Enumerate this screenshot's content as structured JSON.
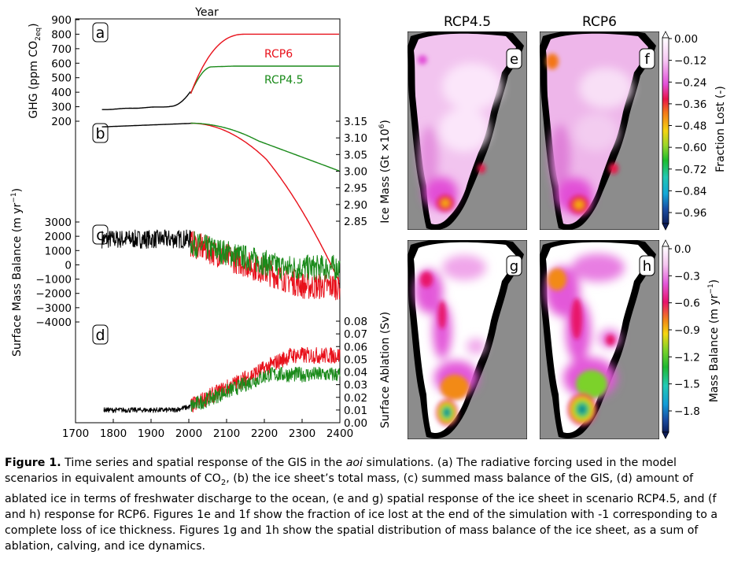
{
  "figure": {
    "left": {
      "top_axis_label": "Year",
      "x_ticks": [
        "1700",
        "1800",
        "1900",
        "2000",
        "2100",
        "2200",
        "2300",
        "2400"
      ],
      "panel_a": {
        "letter": "a",
        "ylabel": "GHG (ppm CO",
        "ylabel_sub": "2eq",
        "ylabel_end": ")",
        "y_ticks": [
          "900",
          "800",
          "700",
          "600",
          "500",
          "400",
          "300",
          "200"
        ],
        "series_labels": [
          "RCP6",
          "RCP4.5"
        ]
      },
      "panel_b": {
        "letter": "b",
        "ylabel": "Ice Mass (Gt  ×10",
        "ylabel_sup": "6",
        "ylabel_end": ")",
        "y_ticks": [
          "3.15",
          "3.10",
          "3.05",
          "3.00",
          "2.95",
          "2.90",
          "2.85"
        ]
      },
      "panel_c": {
        "letter": "c",
        "ylabel": "Surface Mass Balance (m yr",
        "ylabel_sup": "−1",
        "ylabel_end": ")",
        "y_ticks": [
          "3000",
          "2000",
          "1000",
          "0",
          "−1000",
          "−2000",
          "−3000",
          "−4000"
        ]
      },
      "panel_d": {
        "letter": "d",
        "ylabel": "Surface Ablation (Sv)",
        "y_ticks": [
          "0.08",
          "0.07",
          "0.06",
          "0.05",
          "0.04",
          "0.03",
          "0.02",
          "0.01",
          "0.00"
        ]
      }
    },
    "maps": {
      "col_titles": [
        "RCP4.5",
        "RCP6"
      ],
      "top_letters": [
        "e",
        "f"
      ],
      "bottom_letters": [
        "g",
        "h"
      ],
      "cbar_top": {
        "label": "Fraction Lost (-)",
        "ticks": [
          "0.00",
          "−0.12",
          "−0.24",
          "−0.36",
          "−0.48",
          "−0.60",
          "−0.72",
          "−0.84",
          "−0.96"
        ]
      },
      "cbar_bottom": {
        "label": "Mass Balance (m yr",
        "label_sup": "−1",
        "label_end": ")",
        "ticks": [
          "0.0",
          "−0.3",
          "−0.6",
          "−0.9",
          "−1.2",
          "−1.5",
          "−1.8"
        ]
      }
    }
  },
  "caption": {
    "label": "Figure 1.",
    "text": " Time series and spatial response of the GIS in the aoi simulations. (a) The radiative forcing used in the model scenarios in equivalent amounts of CO2, (b) the ice sheet’s total mass, (c) summed mass balance of the GIS, (d) amount of ablated ice in terms of freshwater discharge to the ocean, (e and g) spatial response of the ice sheet in scenario RCP4.5, and (f and h) response for RCP6. Figures 1e and 1f show the fraction of ice lost at the end of the simulation with -1 corresponding to a complete loss of ice thickness. Figures 1g and 1h show the spatial distribution of mass balance of the ice sheet, as a sum of ablation, calving, and ice dynamics."
  },
  "colors": {
    "rcp6": "#e8101a",
    "rcp45": "#1a8a1a",
    "hist": "#000000",
    "ocean": "#8c8c8c"
  }
}
